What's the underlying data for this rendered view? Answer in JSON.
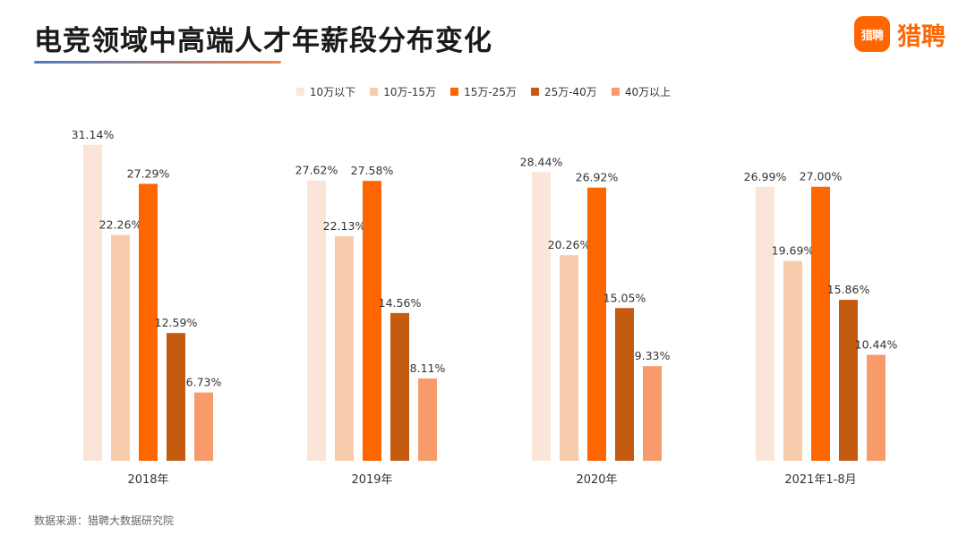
{
  "header": {
    "title": "电竞领域中高端人才年薪段分布变化",
    "brand_icon_text": "猎聘",
    "brand_name": "猎聘",
    "brand_color": "#FF6600"
  },
  "footer": {
    "source": "数据来源：猎聘大数据研究院"
  },
  "colors": {
    "title_underline_start": "#4A7BC4",
    "title_underline_end": "#F0844A"
  },
  "chart_data": {
    "type": "bar",
    "title": "电竞领域中高端人才年薪段分布变化",
    "xlabel": "",
    "ylabel": "",
    "ylim": [
      0,
      35
    ],
    "grid": false,
    "legend_position": "top-center",
    "categories": [
      "2018年",
      "2019年",
      "2020年",
      "2021年1-8月"
    ],
    "series": [
      {
        "name": "10万以下",
        "color": "#FBE5D9",
        "values": [
          31.14,
          27.62,
          28.44,
          26.99
        ],
        "labels": [
          "31.14%",
          "27.62%",
          "28.44%",
          "26.99%"
        ]
      },
      {
        "name": "10万-15万",
        "color": "#F7CCAC",
        "values": [
          22.26,
          22.13,
          20.26,
          19.69
        ],
        "labels": [
          "22.26%",
          "22.13%",
          "20.26%",
          "19.69%"
        ]
      },
      {
        "name": "15万-25万",
        "color": "#FF6600",
        "values": [
          27.29,
          27.58,
          26.92,
          27.0
        ],
        "labels": [
          "27.29%",
          "27.58%",
          "26.92%",
          "27.00%"
        ]
      },
      {
        "name": "25万-40万",
        "color": "#C55A11",
        "values": [
          12.59,
          14.56,
          15.05,
          15.86
        ],
        "labels": [
          "12.59%",
          "14.56%",
          "15.05%",
          "15.86%"
        ]
      },
      {
        "name": "40万以上",
        "color": "#F89B6C",
        "values": [
          6.73,
          8.11,
          9.33,
          10.44
        ],
        "labels": [
          "6.73%",
          "8.11%",
          "9.33%",
          "10.44%"
        ]
      }
    ]
  }
}
